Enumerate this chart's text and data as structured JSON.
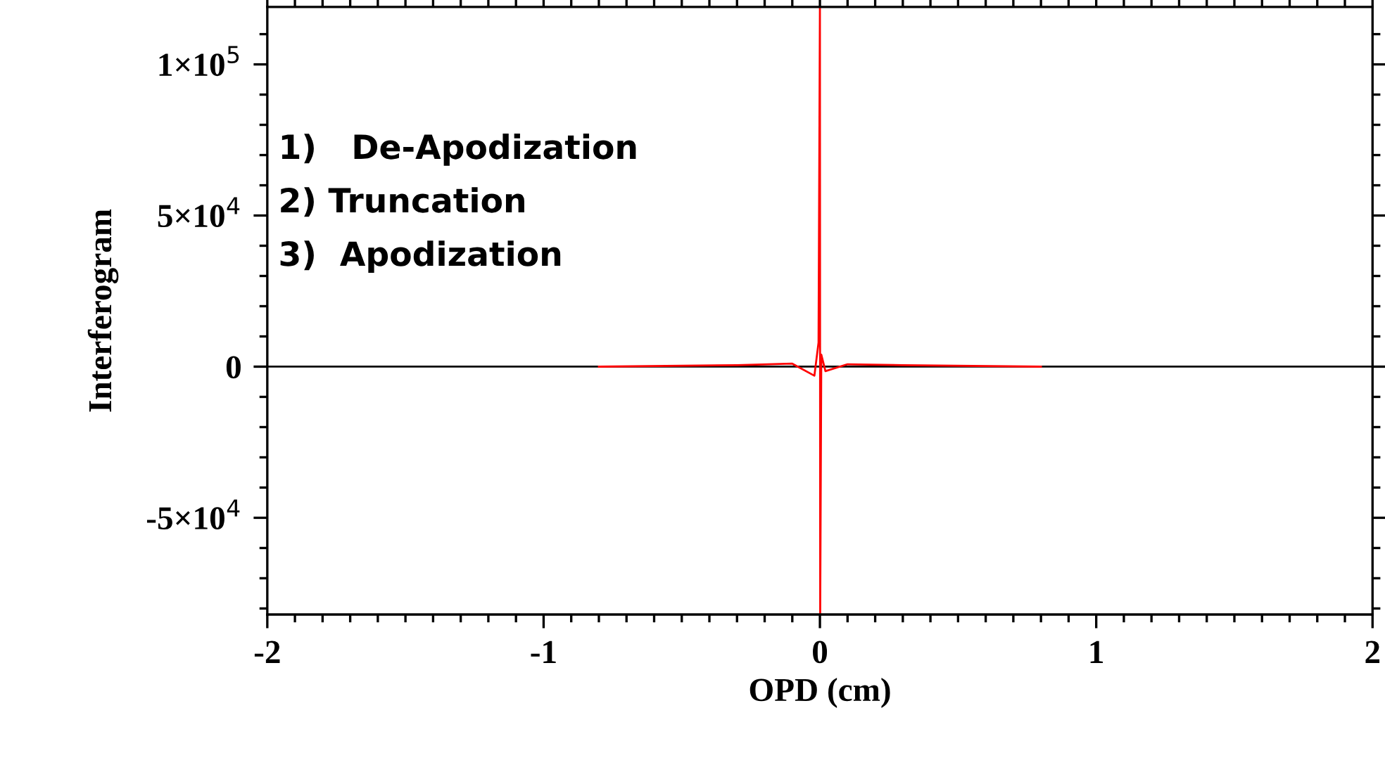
{
  "chart_data": {
    "type": "line",
    "xlabel": "OPD (cm)",
    "ylabel": "Interferogram",
    "series": [
      {
        "color": "#000000",
        "x": [
          -2,
          -1.5,
          -1,
          -0.8,
          0.8,
          1,
          1.5,
          2
        ],
        "values": [
          0,
          0,
          0,
          0,
          0,
          0,
          0,
          0
        ]
      },
      {
        "color": "#ff0000",
        "x": [
          -0.8,
          -0.3,
          -0.1,
          -0.02,
          -0.005,
          0,
          0.001,
          0.005,
          0.02,
          0.1,
          0.3,
          0.8
        ],
        "values": [
          0,
          500,
          1000,
          -3000,
          8000,
          119000,
          -82000,
          4000,
          -1500,
          800,
          500,
          0
        ]
      }
    ],
    "xlim": [
      -2,
      2
    ],
    "xticks": [
      -2,
      -1,
      0,
      1,
      2
    ],
    "ylim": [
      -82000,
      119000
    ],
    "yticks": [
      {
        "value": -50000,
        "label": "-5×10$^{4}$"
      },
      0,
      {
        "value": 50000,
        "label": "5×10$^{4}$"
      },
      {
        "value": 100000,
        "label": "1×10$^{5}$"
      }
    ],
    "annotations": [
      "1)   De-Apodization",
      "2) Truncation",
      "3)  Apodization"
    ],
    "grid": false,
    "legend": false,
    "marker": "none",
    "line_style": "solid"
  }
}
